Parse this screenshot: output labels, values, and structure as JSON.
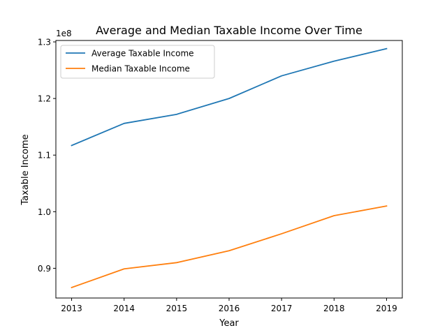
{
  "chart_data": {
    "type": "line",
    "title": "Average and Median Taxable Income Over Time",
    "xlabel": "Year",
    "ylabel": "Taxable Income",
    "y_offset_text": "1e8",
    "x": [
      2013,
      2014,
      2015,
      2016,
      2017,
      2018,
      2019
    ],
    "x_tick_labels": [
      "2013",
      "2014",
      "2015",
      "2016",
      "2017",
      "2018",
      "2019"
    ],
    "y_ticks": [
      0.9,
      1.0,
      1.1,
      1.2,
      1.3
    ],
    "y_tick_labels": [
      "0.9",
      "1.0",
      "1.1",
      "1.2",
      "1.3"
    ],
    "xlim": [
      2012.7,
      2019.3
    ],
    "ylim": [
      0.8475,
      1.3025
    ],
    "y_scale": 100000000,
    "legend_position": "upper-left",
    "grid": false,
    "series": [
      {
        "name": "Average Taxable Income",
        "color": "#1f77b4",
        "values": [
          1.117,
          1.156,
          1.172,
          1.2,
          1.24,
          1.266,
          1.288
        ]
      },
      {
        "name": "Median Taxable Income",
        "color": "#ff7f0e",
        "values": [
          0.866,
          0.899,
          0.91,
          0.931,
          0.961,
          0.993,
          1.01
        ]
      }
    ]
  }
}
